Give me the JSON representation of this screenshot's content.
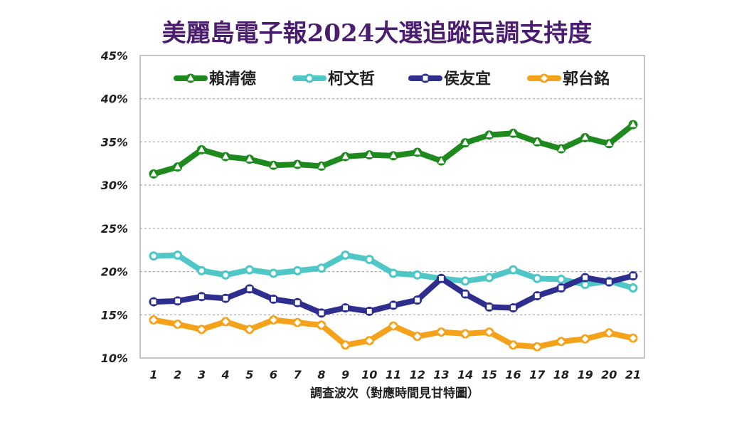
{
  "chart_data": {
    "type": "line",
    "title": "美麗島電子報2024大選追蹤民調支持度",
    "xlabel": "調查波次（對應時間見甘特圖）",
    "ylabel": "",
    "ylim": [
      10,
      45
    ],
    "y_ticks": [
      "10%",
      "15%",
      "20%",
      "25%",
      "30%",
      "35%",
      "40%",
      "45%"
    ],
    "x": [
      1,
      2,
      3,
      4,
      5,
      6,
      7,
      8,
      9,
      10,
      11,
      12,
      13,
      14,
      15,
      16,
      17,
      18,
      19,
      20,
      21
    ],
    "grid": true,
    "legend_position": "top",
    "series": [
      {
        "name": "賴清德",
        "color": "#1e8a1e",
        "marker": "triangle",
        "values": [
          31.3,
          32.1,
          34.1,
          33.3,
          33.0,
          32.3,
          32.4,
          32.2,
          33.3,
          33.5,
          33.4,
          33.8,
          32.8,
          34.9,
          35.8,
          36.0,
          35.0,
          34.2,
          35.5,
          34.8,
          37.0
        ]
      },
      {
        "name": "柯文哲",
        "color": "#4fc7c7",
        "marker": "circle",
        "values": [
          21.8,
          21.9,
          20.1,
          19.6,
          20.2,
          19.8,
          20.1,
          20.4,
          21.9,
          21.4,
          19.8,
          19.6,
          19.2,
          18.9,
          19.3,
          20.2,
          19.2,
          19.1,
          18.5,
          18.9,
          18.1
        ]
      },
      {
        "name": "侯友宜",
        "color": "#2e2e8f",
        "marker": "square",
        "values": [
          16.5,
          16.6,
          17.1,
          16.9,
          18.0,
          16.8,
          16.4,
          15.2,
          15.8,
          15.4,
          16.1,
          16.7,
          19.2,
          17.4,
          15.9,
          15.8,
          17.2,
          18.1,
          19.3,
          18.8,
          19.5
        ]
      },
      {
        "name": "郭台銘",
        "color": "#f5a21b",
        "marker": "diamond",
        "values": [
          14.4,
          13.9,
          13.3,
          14.2,
          13.3,
          14.4,
          14.1,
          13.8,
          11.5,
          12.0,
          13.7,
          12.5,
          13.0,
          12.8,
          13.0,
          11.5,
          11.3,
          11.9,
          12.2,
          12.9,
          12.3
        ]
      }
    ]
  }
}
